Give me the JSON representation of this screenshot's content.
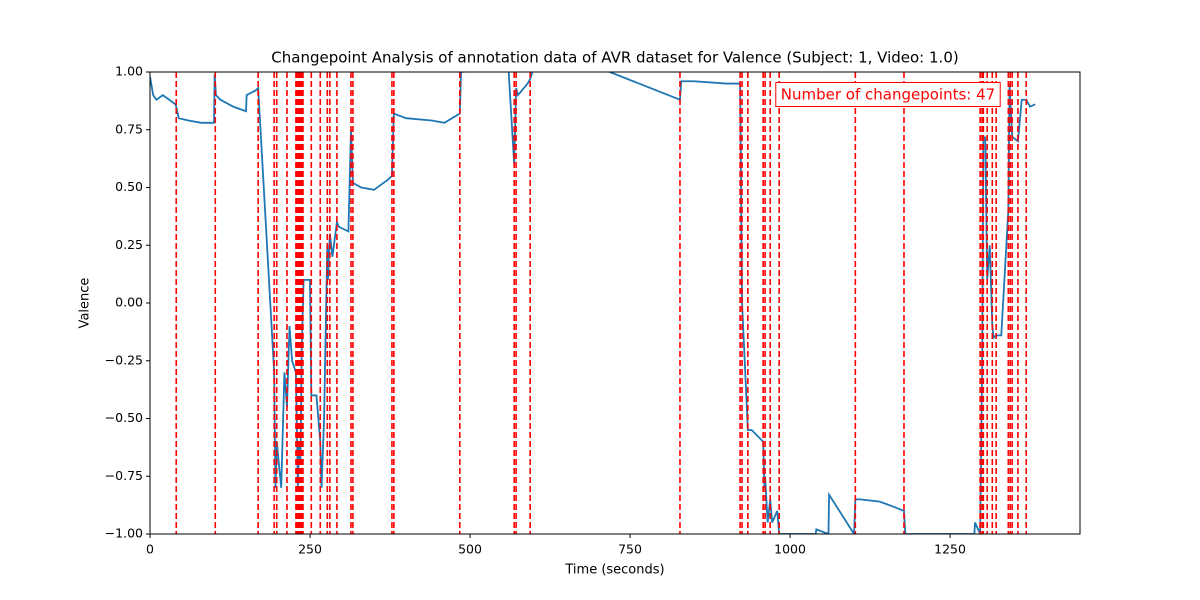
{
  "chart_data": {
    "type": "line",
    "title": "Changepoint Analysis of annotation data of AVR dataset for Valence (Subject: 1, Video: 1.0)",
    "x_label": "Time (seconds)",
    "y_label": "Valence",
    "annotation": "Number of changepoints: 47",
    "xlim": [
      0,
      1453
    ],
    "ylim": [
      -1,
      1
    ],
    "xticks": [
      0,
      250,
      500,
      750,
      1000,
      1250
    ],
    "yticks": [
      {
        "value": -1,
        "label": "−1.00"
      },
      {
        "value": -0.75,
        "label": "−0.75"
      },
      {
        "value": -0.5,
        "label": "−0.50"
      },
      {
        "value": -0.25,
        "label": "−0.25"
      },
      {
        "value": 0,
        "label": "0.00"
      },
      {
        "value": 0.25,
        "label": "0.25"
      },
      {
        "value": 0.5,
        "label": "0.50"
      },
      {
        "value": 0.75,
        "label": "0.75"
      },
      {
        "value": 1,
        "label": "1.00"
      }
    ],
    "x": [
      0,
      5,
      10,
      20,
      30,
      40,
      45,
      60,
      80,
      100,
      101,
      103,
      110,
      130,
      150,
      151,
      165,
      169,
      194,
      196,
      198,
      205,
      210,
      214,
      218,
      222,
      228,
      231,
      233,
      235,
      237,
      240,
      250,
      252,
      260,
      266,
      268,
      272,
      277,
      278,
      281,
      285,
      292,
      295,
      310,
      314,
      317,
      330,
      350,
      370,
      378,
      381,
      400,
      440,
      460,
      484,
      486,
      560,
      569,
      572,
      575,
      590,
      594,
      600,
      700,
      828,
      830,
      850,
      900,
      922,
      925,
      930,
      934,
      940,
      958,
      960,
      961,
      965,
      969,
      972,
      980,
      983,
      990,
      1000,
      1040,
      1041,
      1060,
      1061,
      1100,
      1102,
      1110,
      1140,
      1160,
      1178,
      1180,
      1250,
      1288,
      1289,
      1297,
      1300,
      1302,
      1305,
      1308,
      1312,
      1316,
      1318,
      1322,
      1330,
      1341,
      1343,
      1347,
      1356,
      1362,
      1369,
      1375,
      1383
    ],
    "series": [
      {
        "color": "#1f77b4",
        "values": [
          0.98,
          0.9,
          0.88,
          0.9,
          0.88,
          0.86,
          0.8,
          0.79,
          0.78,
          0.78,
          0.99,
          0.9,
          0.88,
          0.85,
          0.83,
          0.9,
          0.92,
          0.93,
          -0.3,
          -0.8,
          -0.6,
          -0.8,
          -0.3,
          -0.45,
          -0.1,
          -0.25,
          -0.3,
          -0.8,
          -0.6,
          -0.7,
          -0.2,
          0.1,
          0.1,
          -0.4,
          -0.4,
          -0.6,
          -0.8,
          -0.5,
          0.25,
          0.1,
          0.3,
          0.2,
          0.35,
          0.33,
          0.31,
          0.75,
          0.52,
          0.5,
          0.49,
          0.53,
          0.55,
          0.82,
          0.8,
          0.79,
          0.78,
          0.82,
          1.0,
          1.02,
          0.6,
          0.93,
          0.9,
          0.95,
          0.97,
          1.02,
          1.02,
          0.88,
          0.96,
          0.96,
          0.95,
          0.95,
          0.0,
          -0.3,
          -0.55,
          -0.55,
          -0.6,
          -0.8,
          -0.75,
          -0.95,
          -0.85,
          -0.95,
          -0.9,
          -1.0,
          -1.0,
          -1.0,
          -1.0,
          -0.98,
          -1.0,
          -0.83,
          -1.0,
          -0.85,
          -0.85,
          -0.86,
          -0.88,
          -0.9,
          -1.0,
          -1.0,
          -1.0,
          -0.95,
          -1.0,
          -0.3,
          0.7,
          0.72,
          0.1,
          0.25,
          -0.1,
          -0.15,
          -0.14,
          -0.14,
          0.4,
          0.95,
          0.72,
          0.7,
          0.88,
          0.88,
          0.85,
          0.86
        ]
      }
    ],
    "changepoint_color": "#ff0000",
    "changepoints": [
      41,
      102,
      169,
      194,
      198,
      214,
      228,
      230,
      232,
      234,
      235,
      237,
      239,
      252,
      266,
      277,
      281,
      292,
      314,
      317,
      378,
      381,
      484,
      569,
      572,
      594,
      828,
      922,
      925,
      934,
      958,
      961,
      969,
      983,
      1102,
      1178,
      1297,
      1300,
      1302,
      1308,
      1316,
      1322,
      1341,
      1344,
      1347,
      1356,
      1369
    ]
  }
}
